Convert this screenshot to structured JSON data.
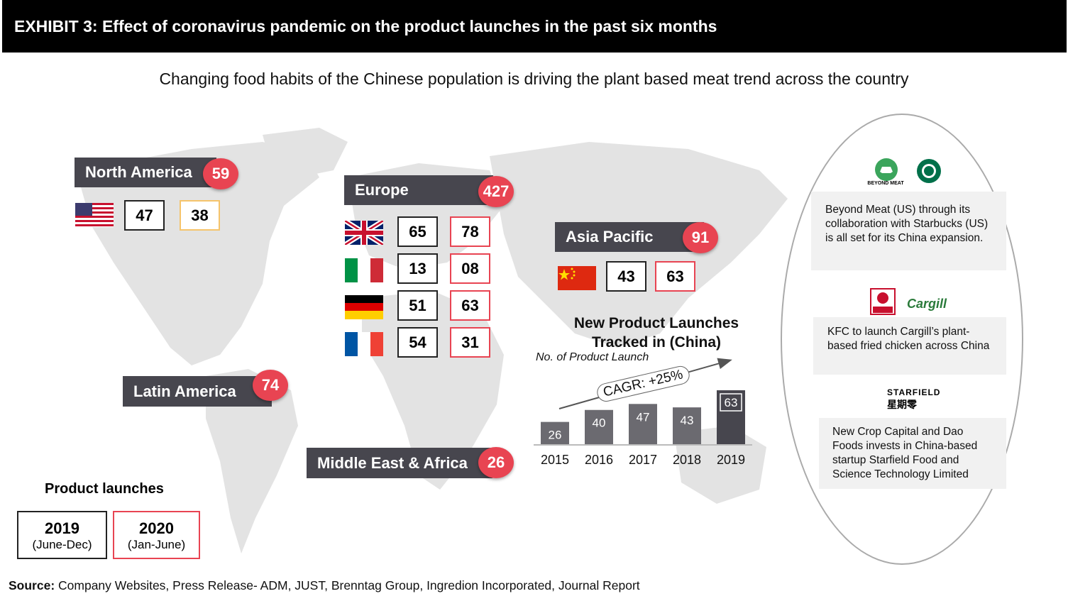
{
  "header": {
    "title": "EXHIBIT 3: Effect of coronavirus pandemic on the product launches in the past six months"
  },
  "subtitle": "Changing food habits of the Chinese population is driving the plant based meat trend across the country",
  "regions": {
    "north_america": {
      "label": "North America",
      "total": "59",
      "countries": [
        {
          "flag": "usa-flag",
          "y2019": "47",
          "y2020": "38"
        }
      ]
    },
    "europe": {
      "label": "Europe",
      "total": "427",
      "countries": [
        {
          "flag": "uk-flag",
          "y2019": "65",
          "y2020": "78"
        },
        {
          "flag": "italy-flag",
          "y2019": "13",
          "y2020": "08"
        },
        {
          "flag": "germany-flag",
          "y2019": "51",
          "y2020": "63"
        },
        {
          "flag": "france-flag",
          "y2019": "54",
          "y2020": "31"
        }
      ]
    },
    "asia_pacific": {
      "label": "Asia Pacific",
      "total": "91",
      "countries": [
        {
          "flag": "china-flag",
          "y2019": "43",
          "y2020": "63"
        }
      ]
    },
    "latin_america": {
      "label": "Latin America",
      "total": "74"
    },
    "mea": {
      "label": "Middle East & Africa",
      "total": "26"
    }
  },
  "chart_data": {
    "type": "bar",
    "title": "New Product Launches Tracked in  (China)",
    "title_line1": "New Product Launches",
    "title_line2": "Tracked in  (China)",
    "ylabel": "No. of Product Launch",
    "categories": [
      "2015",
      "2016",
      "2017",
      "2018",
      "2019"
    ],
    "values": [
      26,
      40,
      47,
      43,
      63
    ],
    "annotation": "CAGR: +25%",
    "colors": {
      "bar": "#6b6a70",
      "last_bar": "#47464e"
    },
    "ylim": [
      0,
      63
    ]
  },
  "news": [
    {
      "logos": [
        "BEYOND MEAT",
        "Starbucks"
      ],
      "text": "Beyond Meat (US) through its collaboration with Starbucks (US) is all set for its China expansion."
    },
    {
      "logos": [
        "KFC",
        "Cargill"
      ],
      "text": "KFC to launch Cargill’s plant-based fried chicken across China"
    },
    {
      "logos": [
        "STARFIELD",
        "星期零"
      ],
      "text": "New Crop Capital and Dao Foods invests in China-based startup Starfield Food and Science Technology Limited"
    }
  ],
  "legend": {
    "title": "Product launches",
    "items": [
      {
        "year": "2019",
        "range": "(June-Dec)",
        "color": "#222222"
      },
      {
        "year": "2020",
        "range": "(Jan-June)",
        "color": "#e84452"
      }
    ]
  },
  "source": {
    "label": "Source:",
    "text": " Company Websites, Press Release- ADM, JUST, Brenntag Group, Ingredion Incorporated, Journal Report"
  },
  "colors": {
    "accent": "#e84452",
    "label_bg": "#47464e",
    "header_bg": "#000000"
  }
}
